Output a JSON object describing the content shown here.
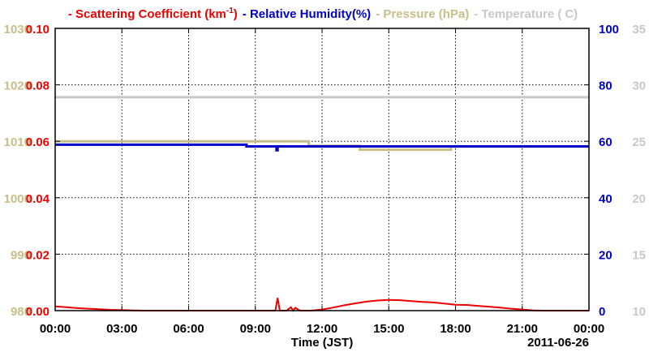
{
  "chart_data": {
    "type": "line",
    "title": "",
    "xlabel": "Time (JST)",
    "date_label": "2011-06-26",
    "x_ticks": [
      "00:00",
      "03:00",
      "06:00",
      "09:00",
      "12:00",
      "15:00",
      "18:00",
      "21:00",
      "00:00"
    ],
    "xlim_hours": [
      0,
      24
    ],
    "grid": true,
    "legend_placement": "top",
    "axes": {
      "pressure": {
        "ticks": [
          "1030",
          "1020",
          "1010",
          "1000",
          "990",
          "980"
        ],
        "range": [
          980,
          1030
        ],
        "color": "#c8bf88"
      },
      "scattering": {
        "ticks": [
          "0.10",
          "0.08",
          "0.06",
          "0.04",
          "0.02",
          "0.00"
        ],
        "range": [
          0,
          0.1
        ],
        "color": "#ee0000"
      },
      "humidity": {
        "ticks": [
          "100",
          "80",
          "60",
          "40",
          "20",
          "0"
        ],
        "range": [
          0,
          100
        ],
        "color": "#0000cc"
      },
      "temperature": {
        "ticks": [
          "35",
          "30",
          "25",
          "20",
          "15",
          "10"
        ],
        "range": [
          10,
          35
        ],
        "color": "#c8c8c8"
      }
    },
    "legend": [
      {
        "marker": "-",
        "text": "Scattering Coefficient (km",
        "superscript": "-1",
        "suffix": ")",
        "color": "#ee0000"
      },
      {
        "marker": "-",
        "text": "Relative Humidity(%)",
        "color": "#0000cc"
      },
      {
        "marker": "-",
        "text": "Pressure (hPa)",
        "color": "#c8bf88"
      },
      {
        "marker": "-",
        "text": "Temperature (",
        "suffix": "C)",
        "color": "#c8c8c8"
      }
    ],
    "series": [
      {
        "name": "Pressure (hPa)",
        "axis": "pressure",
        "color": "#c8bf88",
        "step": true,
        "x": [
          0,
          11.4,
          13.7,
          17.8,
          24
        ],
        "y": [
          1010,
          1009.2,
          1008.5,
          1009.1,
          1009.1
        ]
      },
      {
        "name": "Temperature (C)",
        "axis": "temperature",
        "color": "#c8c8c8",
        "step": true,
        "x": [
          0,
          24
        ],
        "y": [
          28.9,
          28.9
        ]
      },
      {
        "name": "Relative Humidity(%)",
        "axis": "humidity",
        "color": "#0000cc",
        "step": true,
        "x": [
          0,
          8.6,
          9.95,
          10.0,
          10.1,
          24
        ],
        "y": [
          58.8,
          58.2,
          56.8,
          58.2,
          58.2,
          58.2
        ]
      },
      {
        "name": "Scattering Coefficient (km-1)",
        "axis": "scattering",
        "color": "#ee0000",
        "step": false,
        "x": [
          0,
          0.5,
          1,
          1.5,
          2,
          2.5,
          3,
          3.5,
          4,
          4.5,
          5,
          5.5,
          6,
          6.5,
          7,
          7.5,
          8,
          8.5,
          9,
          9.5,
          9.9,
          10.0,
          10.1,
          10.4,
          10.6,
          10.7,
          10.8,
          11,
          11.5,
          12,
          12.5,
          13,
          13.5,
          14,
          14.5,
          15,
          15.5,
          16,
          16.5,
          17,
          17.5,
          18,
          18.5,
          19,
          19.5,
          20,
          20.5,
          21,
          21.5,
          22,
          23,
          24
        ],
        "y": [
          0.0015,
          0.0012,
          0.0009,
          0.0007,
          0.0005,
          0.0003,
          0.0002,
          0.0001,
          0,
          0,
          0,
          0,
          0,
          0,
          0,
          0,
          0,
          0,
          0,
          0,
          0,
          0.0045,
          0,
          0,
          0.0012,
          0,
          0.001,
          0,
          0,
          0.0004,
          0.0011,
          0.0019,
          0.0026,
          0.0032,
          0.0036,
          0.0038,
          0.0037,
          0.0034,
          0.0031,
          0.0029,
          0.0025,
          0.0021,
          0.002,
          0.0017,
          0.0014,
          0.0011,
          0.0007,
          0.0004,
          0.0001,
          0,
          0,
          0
        ]
      }
    ]
  }
}
